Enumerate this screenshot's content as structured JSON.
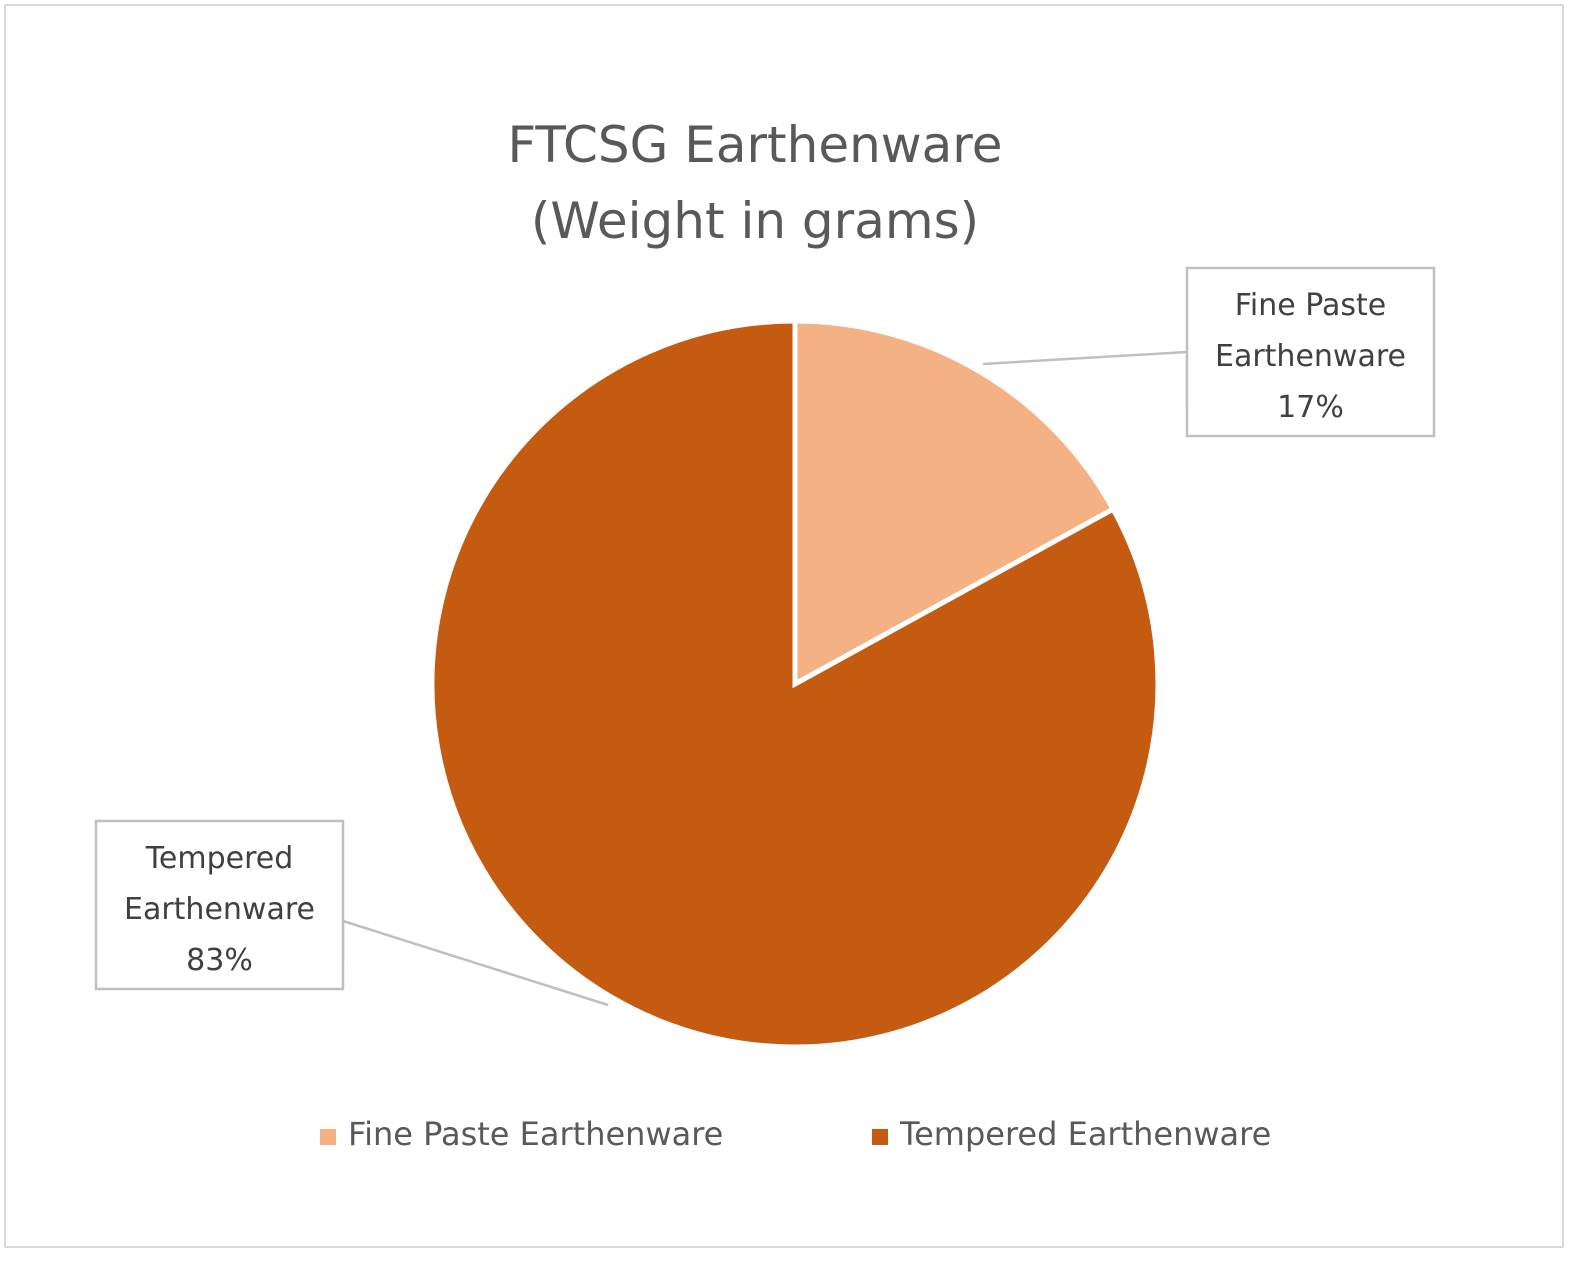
{
  "chart_data": {
    "type": "pie",
    "title": [
      "FTCSG Earthenware",
      "(Weight in grams)"
    ],
    "slices": [
      {
        "label": "Fine Paste Earthenware",
        "label_lines": [
          "Fine Paste",
          "Earthenware",
          "17%"
        ],
        "value": 17,
        "percent_label": "17%",
        "color": "#F4B183"
      },
      {
        "label": "Tempered Earthenware",
        "label_lines": [
          "Tempered",
          "Earthenware",
          "83%"
        ],
        "value": 83,
        "percent_label": "83%",
        "color": "#C55A11"
      }
    ],
    "legend": {
      "position": "bottom",
      "entries": [
        "Fine Paste Earthenware",
        "Tempered Earthenware"
      ]
    },
    "start_angle": "12 o'clock",
    "direction": "clockwise"
  }
}
